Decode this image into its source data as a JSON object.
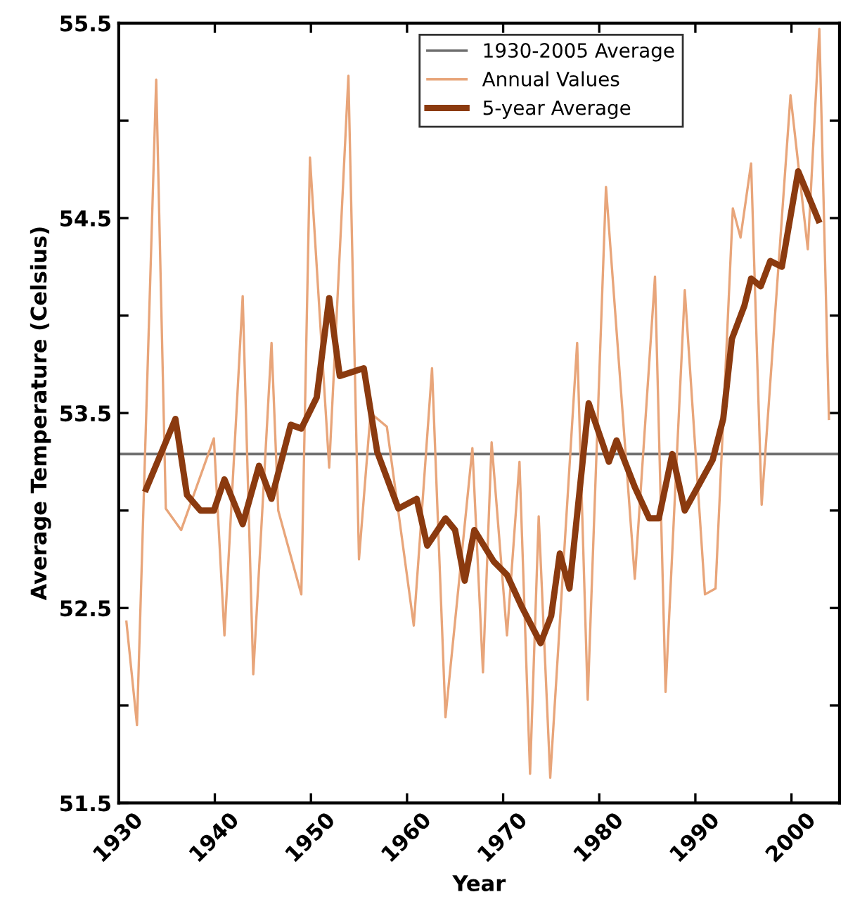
{
  "chart_data": {
    "type": "line",
    "xlabel": "Year",
    "ylabel": "Average Temperature (Celsius)",
    "xlim": [
      1930,
      2005
    ],
    "xticks": [
      1930,
      1940,
      1950,
      1960,
      1970,
      1980,
      1990,
      2000
    ],
    "ylim": [
      51.5,
      55.5
    ],
    "yticks": [
      51.5,
      {
        "value": 52,
        "label": null
      },
      52.5,
      {
        "value": 53,
        "label": null
      },
      53.5,
      {
        "value": 54,
        "label": null
      },
      54.5,
      {
        "value": 55,
        "label": null
      },
      55.5
    ],
    "grid": false,
    "legend": "top",
    "ref_lines": [
      {
        "axis": "y",
        "value": 53.29,
        "label": "1930-2005 Average",
        "color": "#707070"
      }
    ],
    "series": [
      {
        "name": "Annual Values",
        "color": "#e8a57a",
        "x": [
          1930.8,
          1931.9,
          1933.9,
          1934.9,
          1936.5,
          1939.9,
          1941.0,
          1942.9,
          1944.0,
          1945.9,
          1946.6,
          1949.0,
          1949.9,
          1951.9,
          1953.9,
          1955.0,
          1956.2,
          1957.9,
          1960.7,
          1962.6,
          1964.0,
          1966.8,
          1967.9,
          1968.8,
          1970.4,
          1971.7,
          1972.8,
          1973.7,
          1974.9,
          1977.7,
          1978.8,
          1980.7,
          1983.7,
          1985.8,
          1986.9,
          1988.9,
          1991.0,
          1992.1,
          1993.9,
          1994.7,
          1995.8,
          1996.9,
          1999.9,
          2001.7,
          2002.9,
          2003.9
        ],
        "values": [
          52.43,
          51.9,
          55.21,
          53.01,
          52.9,
          53.37,
          52.36,
          54.1,
          52.16,
          53.86,
          53.0,
          52.57,
          54.81,
          53.22,
          55.23,
          52.75,
          53.5,
          53.43,
          52.41,
          53.73,
          51.94,
          53.32,
          52.17,
          53.35,
          52.36,
          53.25,
          51.65,
          52.97,
          51.63,
          53.86,
          52.03,
          54.66,
          52.65,
          54.2,
          52.07,
          54.13,
          52.57,
          52.6,
          54.55,
          54.4,
          54.78,
          53.03,
          55.13,
          54.34,
          55.47,
          53.47
        ]
      },
      {
        "name": "5-year Average",
        "color": "#8b3a0f",
        "x": [
          1932.85,
          1935.9,
          1937.1,
          1938.5,
          1939.9,
          1941.0,
          1942.9,
          1944.6,
          1945.9,
          1947.9,
          1949.0,
          1950.6,
          1951.9,
          1953.0,
          1955.5,
          1956.9,
          1959.1,
          1961.0,
          1962.1,
          1964.0,
          1965.0,
          1966.0,
          1967.0,
          1969.0,
          1970.4,
          1972.0,
          1973.9,
          1975.0,
          1975.9,
          1976.9,
          1978.9,
          1981.0,
          1981.8,
          1983.7,
          1985.2,
          1986.2,
          1987.6,
          1988.9,
          1991.8,
          1992.9,
          1993.8,
          1995.1,
          1995.8,
          1996.8,
          1997.8,
          1999.0,
          2000.7,
          2002.8
        ],
        "values": [
          53.11,
          53.47,
          53.08,
          53.0,
          53.0,
          53.16,
          52.93,
          53.23,
          53.06,
          53.44,
          53.42,
          53.58,
          54.09,
          53.69,
          53.73,
          53.3,
          53.01,
          53.06,
          52.82,
          52.96,
          52.9,
          52.64,
          52.9,
          52.74,
          52.67,
          52.5,
          52.32,
          52.46,
          52.78,
          52.6,
          53.55,
          53.25,
          53.36,
          53.12,
          52.96,
          52.96,
          53.29,
          53.0,
          53.26,
          53.47,
          53.88,
          54.05,
          54.19,
          54.15,
          54.28,
          54.25,
          54.74,
          54.49
        ]
      }
    ]
  }
}
